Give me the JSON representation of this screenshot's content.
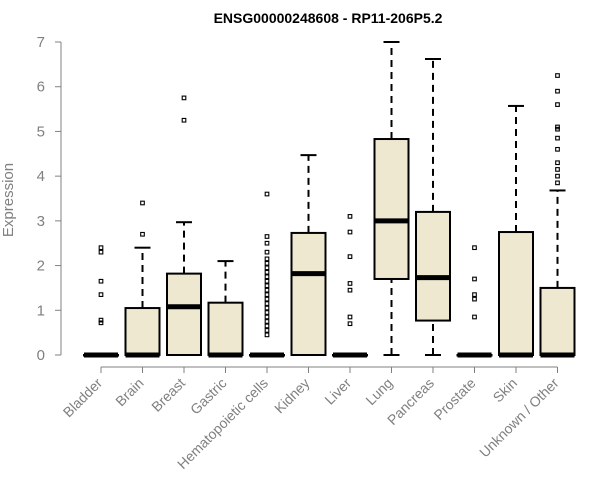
{
  "chart_data": {
    "type": "boxplot",
    "title": "ENSG00000248608 - RP11-206P5.2",
    "ylabel": "Expression",
    "xlabel": "",
    "ylim": [
      0,
      7
    ],
    "yticks": [
      0,
      1,
      2,
      3,
      4,
      5,
      6,
      7
    ],
    "grid": false,
    "colors": {
      "box_fill": "#EEE8D0",
      "stroke": "#000000",
      "axis_text": "#808080"
    },
    "categories": [
      "Bladder",
      "Brain",
      "Breast",
      "Gastric",
      "Hematopoietic cells",
      "Kidney",
      "Liver",
      "Lung",
      "Pancreas",
      "Prostate",
      "Skin",
      "Unknown / Other"
    ],
    "boxes": [
      {
        "category": "Bladder",
        "whisker_low": 0,
        "q1": 0,
        "median": 0,
        "q3": 0,
        "whisker_high": 0,
        "outliers": [
          0.72,
          0.78,
          1.35,
          1.65,
          2.3,
          2.4
        ]
      },
      {
        "category": "Brain",
        "whisker_low": 0,
        "q1": 0,
        "median": 0,
        "q3": 1.05,
        "whisker_high": 2.4,
        "outliers": [
          2.7,
          3.4
        ]
      },
      {
        "category": "Breast",
        "whisker_low": 0,
        "q1": 0,
        "median": 1.08,
        "q3": 1.82,
        "whisker_high": 2.97,
        "outliers": [
          5.25,
          5.75
        ]
      },
      {
        "category": "Gastric",
        "whisker_low": 0,
        "q1": 0,
        "median": 0,
        "q3": 1.17,
        "whisker_high": 2.1,
        "outliers": []
      },
      {
        "category": "Hematopoietic cells",
        "whisker_low": 0,
        "q1": 0,
        "median": 0,
        "q3": 0,
        "whisker_high": 0,
        "outliers": [
          0.45,
          0.55,
          0.65,
          0.75,
          0.85,
          0.95,
          1.05,
          1.15,
          1.25,
          1.35,
          1.45,
          1.55,
          1.65,
          1.75,
          1.85,
          1.95,
          2.05,
          2.15,
          2.3,
          2.5,
          2.65,
          3.6
        ]
      },
      {
        "category": "Kidney",
        "whisker_low": 0,
        "q1": 0,
        "median": 1.82,
        "q3": 2.73,
        "whisker_high": 4.47,
        "outliers": []
      },
      {
        "category": "Liver",
        "whisker_low": 0,
        "q1": 0,
        "median": 0,
        "q3": 0,
        "whisker_high": 0,
        "outliers": [
          0.7,
          0.85,
          1.45,
          1.6,
          2.2,
          2.75,
          3.1
        ]
      },
      {
        "category": "Lung",
        "whisker_low": 0,
        "q1": 1.7,
        "median": 3.0,
        "q3": 4.83,
        "whisker_high": 7.0,
        "outliers": []
      },
      {
        "category": "Pancreas",
        "whisker_low": 0,
        "q1": 0.77,
        "median": 1.73,
        "q3": 3.2,
        "whisker_high": 6.62,
        "outliers": []
      },
      {
        "category": "Prostate",
        "whisker_low": 0,
        "q1": 0,
        "median": 0,
        "q3": 0,
        "whisker_high": 0,
        "outliers": [
          0.85,
          1.25,
          1.35,
          1.7,
          2.4
        ]
      },
      {
        "category": "Skin",
        "whisker_low": 0,
        "q1": 0,
        "median": 0,
        "q3": 2.75,
        "whisker_high": 5.57,
        "outliers": []
      },
      {
        "category": "Unknown / Other",
        "whisker_low": 0,
        "q1": 0,
        "median": 0,
        "q3": 1.5,
        "whisker_high": 3.68,
        "outliers": [
          3.85,
          4.0,
          4.15,
          4.3,
          4.6,
          4.85,
          5.05,
          5.1,
          5.6,
          5.9,
          6.25
        ]
      }
    ]
  }
}
